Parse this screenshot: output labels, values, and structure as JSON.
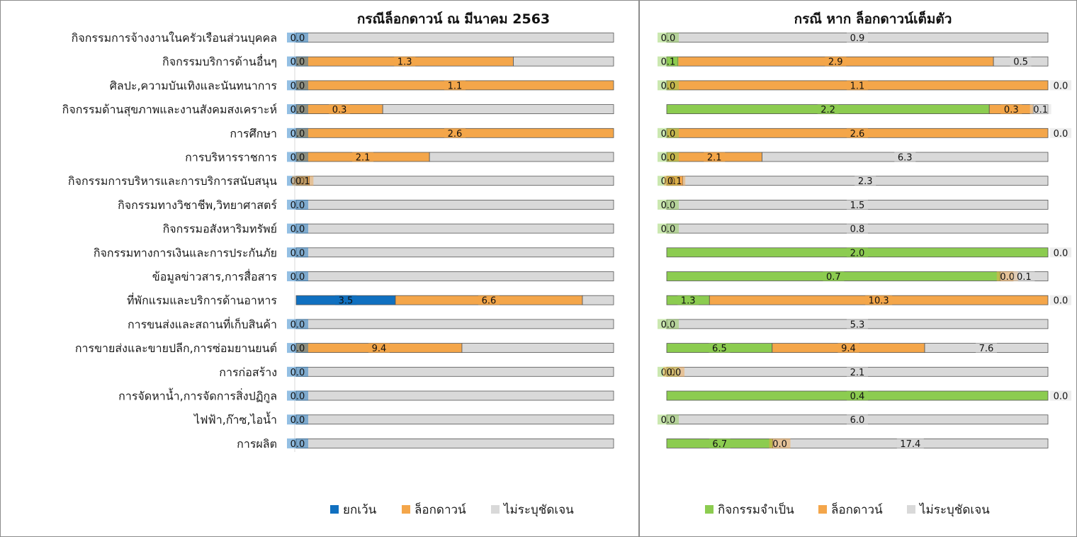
{
  "colors": {
    "exempt": "#1070c0",
    "lockdown": "#f4a64a",
    "unspecified": "#d9d9d9",
    "essential": "#8ccc50",
    "label_bg_alpha": 0.45
  },
  "chart_data": [
    {
      "type": "bar",
      "orientation": "horizontal",
      "stacked": true,
      "title": "กรณีล็อกดาวน์ ณ มีนาคม 2563",
      "categories": [
        "กิจกรรมการจ้างงานในครัวเรือนส่วนบุคคล",
        "กิจกรรมบริการด้านอื่นๆ",
        "ศิลปะ,ความบันเทิงและนันทนาการ",
        "กิจกรรมด้านสุขภาพและงานสังคมสงเคราะห์",
        "การศึกษา",
        "การบริหารราชการ",
        "กิจกรรมการบริหารและการบริการสนับสนุน",
        "กิจกรรมทางวิชาชีพ,วิทยาศาสตร์",
        "กิจกรรมอสังหาริมทรัพย์",
        "กิจกรรมทางการเงินและการประกันภัย",
        "ข้อมูลข่าวสาร,การสื่อสาร",
        "ที่พักแรมและบริการด้านอาหาร",
        "การขนส่งและสถานที่เก็บสินค้า",
        "การขายส่งและขายปลีก,การซ่อมยานยนต์",
        "การก่อสร้าง",
        "การจัดหาน้ำ,การจัดการสิ่งปฏิกูล",
        "ไฟฟ้า,ก๊าซ,ไอน้ำ",
        "การผลิต"
      ],
      "series": [
        {
          "name": "ยกเว้น",
          "color_key": "exempt",
          "values": [
            0.0,
            0.0,
            0.0,
            0.0,
            0.0,
            0.0,
            0.0,
            0.0,
            0.0,
            0.0,
            0.0,
            3.5,
            0.0,
            0.0,
            0.0,
            0.0,
            0.0,
            0.0
          ],
          "labels": [
            "0.0",
            "0.0",
            "0.0",
            "0.0",
            "0.0",
            "0.0",
            "0.0",
            "0.0",
            "0.0",
            "0.0",
            "0.0",
            "3.5",
            "0.0",
            "0.0",
            "0.0",
            "0.0",
            "0.0",
            "0.0"
          ]
        },
        {
          "name": "ล็อกดาวน์",
          "color_key": "lockdown",
          "values": [
            0.0,
            1.3,
            1.1,
            0.3,
            2.6,
            2.1,
            0.1,
            0.0,
            0.0,
            0.0,
            0.0,
            6.6,
            0.0,
            9.4,
            0.0,
            0.0,
            0.0,
            0.0
          ],
          "labels": [
            "",
            "1.3",
            "1.1",
            "0.3",
            "2.6",
            "2.1",
            "0.1",
            "",
            "",
            "",
            "",
            "6.6",
            "",
            "9.4",
            "",
            "",
            "",
            ""
          ]
        },
        {
          "name": "ไม่ระบุชัดเจน",
          "color_key": "unspecified",
          "values": [
            0.9,
            0.6,
            0.0,
            0.8,
            0.0,
            2.9,
            2.3,
            1.5,
            0.8,
            2.0,
            0.8,
            1.1,
            5.3,
            8.6,
            2.1,
            0.4,
            6.0,
            24.1
          ],
          "labels": [
            "",
            "",
            "",
            "",
            "",
            "",
            "",
            "",
            "",
            "",
            "",
            "",
            "",
            "",
            "",
            "",
            "",
            ""
          ]
        }
      ],
      "legend": {
        "position": "bottom",
        "entries": [
          "ยกเว้น",
          "ล็อกดาวน์",
          "ไม่ระบุชัดเจน"
        ]
      },
      "grid": false
    },
    {
      "type": "bar",
      "orientation": "horizontal",
      "stacked": true,
      "title": "กรณี หาก ล็อกดาวน์เต็มตัว",
      "categories": [
        "กิจกรรมการจ้างงานในครัวเรือนส่วนบุคคล",
        "กิจกรรมบริการด้านอื่นๆ",
        "ศิลปะ,ความบันเทิงและนันทนาการ",
        "กิจกรรมด้านสุขภาพและงานสังคมสงเคราะห์",
        "การศึกษา",
        "การบริหารราชการ",
        "กิจกรรมการบริหารและการบริการสนับสนุน",
        "กิจกรรมทางวิชาชีพ,วิทยาศาสตร์",
        "กิจกรรมอสังหาริมทรัพย์",
        "กิจกรรมทางการเงินและการประกันภัย",
        "ข้อมูลข่าวสาร,การสื่อสาร",
        "ที่พักแรมและบริการด้านอาหาร",
        "การขนส่งและสถานที่เก็บสินค้า",
        "การขายส่งและขายปลีก,การซ่อมยานยนต์",
        "การก่อสร้าง",
        "การจัดหาน้ำ,การจัดการสิ่งปฏิกูล",
        "ไฟฟ้า,ก๊าซ,ไอน้ำ",
        "การผลิต"
      ],
      "series": [
        {
          "name": "กิจกรรมจำเป็น",
          "color_key": "essential",
          "values": [
            0.0,
            0.1,
            0.0,
            2.2,
            0.0,
            0.0,
            0.0,
            0.0,
            0.0,
            2.0,
            0.7,
            1.3,
            0.0,
            6.5,
            0.0,
            0.4,
            0.0,
            6.7
          ],
          "labels": [
            "0.0",
            "0.1",
            "0.0",
            "2.2",
            "0.0",
            "0.0",
            "0.0",
            "0.0",
            "0.0",
            "2.0",
            "0.7",
            "1.3",
            "0.0",
            "6.5",
            "0.0",
            "0.4",
            "0.0",
            "6.7"
          ]
        },
        {
          "name": "ล็อกดาวน์",
          "color_key": "lockdown",
          "values": [
            0.0,
            2.9,
            1.1,
            0.3,
            2.6,
            2.1,
            0.1,
            0.0,
            0.0,
            0.0,
            0.0,
            10.3,
            0.0,
            9.4,
            0.0,
            0.0,
            0.0,
            0.0
          ],
          "labels": [
            "",
            "2.9",
            "1.1",
            "0.3",
            "2.6",
            "2.1",
            "0.1",
            "",
            "",
            "",
            "0.0",
            "10.3",
            "",
            "9.4",
            "0.0",
            "",
            "",
            "0.0"
          ]
        },
        {
          "name": "ไม่ระบุชัดเจน",
          "color_key": "unspecified",
          "values": [
            0.9,
            0.5,
            0.0,
            0.1,
            0.0,
            6.3,
            2.3,
            1.5,
            0.8,
            0.0,
            0.1,
            0.0,
            5.3,
            7.6,
            2.1,
            0.0,
            6.0,
            17.4
          ],
          "labels": [
            "0.9",
            "0.5",
            "0.0",
            "0.1",
            "0.0",
            "6.3",
            "2.3",
            "1.5",
            "0.8",
            "0.0",
            "0.1",
            "0.0",
            "5.3",
            "7.6",
            "2.1",
            "0.0",
            "6.0",
            "17.4"
          ]
        }
      ],
      "legend": {
        "position": "bottom",
        "entries": [
          "กิจกรรมจำเป็น",
          "ล็อกดาวน์",
          "ไม่ระบุชัดเจน"
        ]
      },
      "grid": false
    }
  ]
}
